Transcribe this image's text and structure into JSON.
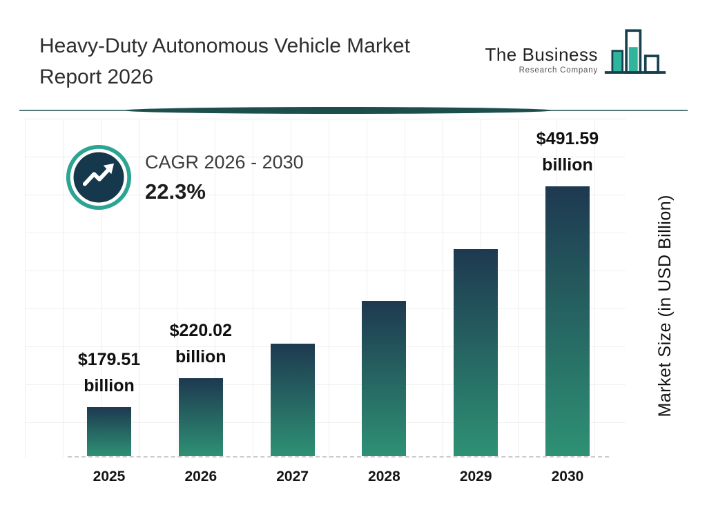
{
  "header": {
    "title_line1": "Heavy-Duty Autonomous Vehicle Market",
    "title_line2": "Report 2026",
    "logo": {
      "name": "The Business",
      "subname": "Research Company"
    }
  },
  "cagr": {
    "label": "CAGR 2026 - 2030",
    "value": "22.3%"
  },
  "colors": {
    "accent_teal": "#2ba492",
    "dark_navy": "#16384c",
    "divider_teal": "#1d4e4e",
    "bar_top": "#1e3950",
    "bar_bottom": "#2e9174",
    "grid": "#eeeeee"
  },
  "chart_data": {
    "type": "bar",
    "title": "Heavy-Duty Autonomous Vehicle Market Report 2026",
    "xlabel": "",
    "ylabel": "Market Size (in USD Billion)",
    "categories": [
      "2025",
      "2026",
      "2027",
      "2028",
      "2029",
      "2030"
    ],
    "values": [
      179.51,
      220.02,
      269.1,
      329.1,
      402.5,
      491.59
    ],
    "value_labels": [
      {
        "amount": "$179.51",
        "unit": "billion"
      },
      {
        "amount": "$220.02",
        "unit": "billion"
      },
      null,
      null,
      null,
      {
        "amount": "$491.59",
        "unit": "billion"
      }
    ],
    "ylim": [
      110,
      500
    ],
    "grid": true,
    "legend": "none",
    "bar_gradient": [
      "#1e3950",
      "#2e9174"
    ]
  }
}
